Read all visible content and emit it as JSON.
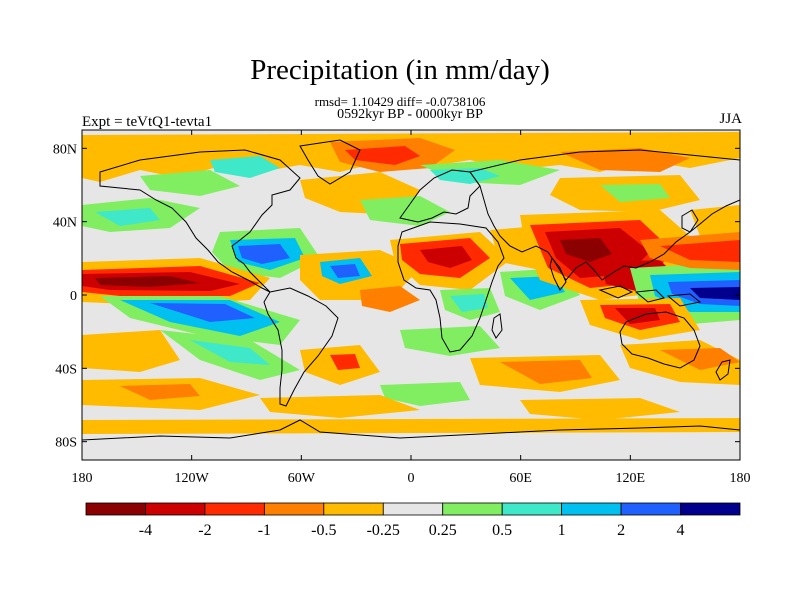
{
  "header": {
    "title": "Precipitation (in mm/day)",
    "stats": "rmsd= 1.10429  diff= -0.0738106",
    "period": "0592kyr BP - 0000kyr BP",
    "experiment": "Expt = teVtQ1-tevta1",
    "season": "JJA"
  },
  "axes": {
    "x_ticks": [
      {
        "value": -180,
        "label": "180"
      },
      {
        "value": -120,
        "label": "120W"
      },
      {
        "value": -60,
        "label": "60W"
      },
      {
        "value": 0,
        "label": "0"
      },
      {
        "value": 60,
        "label": "60E"
      },
      {
        "value": 120,
        "label": "120E"
      },
      {
        "value": 180,
        "label": "180"
      }
    ],
    "y_ticks": [
      {
        "value": 80,
        "label": "80N"
      },
      {
        "value": 40,
        "label": "40N"
      },
      {
        "value": 0,
        "label": "0"
      },
      {
        "value": -40,
        "label": "40S"
      },
      {
        "value": -80,
        "label": "80S"
      }
    ],
    "lon_range": [
      -180,
      180
    ],
    "lat_range": [
      -90,
      90
    ]
  },
  "colorbar": {
    "colors": [
      "#8b0000",
      "#cc0000",
      "#ff2a00",
      "#ff7f00",
      "#ffbb00",
      "#e6e6e6",
      "#80ee60",
      "#3ee8c8",
      "#00c0f0",
      "#2060ff",
      "#00008c"
    ],
    "labels": [
      "-4",
      "-2",
      "-1",
      "-0.5",
      "-0.25",
      "0.25",
      "0.5",
      "1",
      "2",
      "4"
    ]
  },
  "colors": {
    "neutral": "#e6e6e6",
    "strong_dry": "#cc0000",
    "dry": "#ff2a00",
    "mod_dry": "#ff7f00",
    "light_dry": "#ffbb00",
    "light_wet": "#80ee60",
    "mod_wet": "#3ee8c8",
    "wet": "#00c0f0",
    "strong_wet": "#2060ff",
    "extreme_wet": "#00008c",
    "extreme_dry": "#8b0000"
  }
}
